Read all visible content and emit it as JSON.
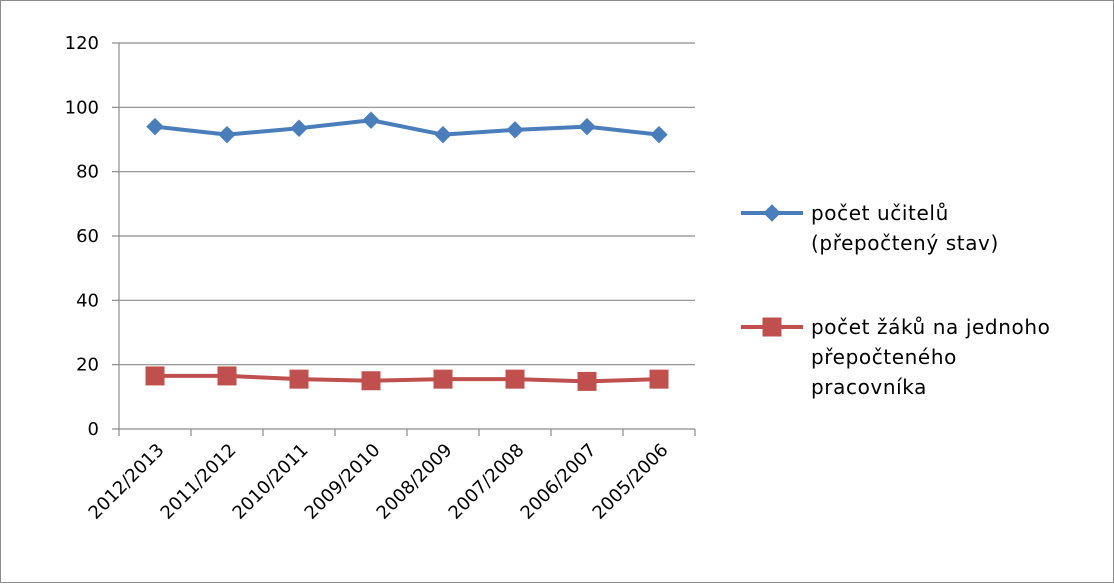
{
  "chart_data": {
    "type": "line",
    "categories": [
      "2012/2013",
      "2011/2012",
      "2010/2011",
      "2009/2010",
      "2008/2009",
      "2007/2008",
      "2006/2007",
      "2005/2006"
    ],
    "series": [
      {
        "name": "počet učitelů (přepočtený stav)",
        "legend_lines": [
          "počet učitelů",
          "(přepočtený stav)"
        ],
        "color": "#4a7ebb",
        "marker": "diamond",
        "values": [
          94,
          91.5,
          93.5,
          96,
          91.5,
          93,
          94,
          91.5
        ]
      },
      {
        "name": "počet žáků na jednoho přepočteného pracovníka",
        "legend_lines": [
          "počet žáků na jednoho",
          "přepočteného",
          "pracovníka"
        ],
        "color": "#c0504d",
        "marker": "square",
        "values": [
          16.5,
          16.5,
          15.5,
          15,
          15.5,
          15.5,
          14.8,
          15.5
        ]
      }
    ],
    "ylim": [
      0,
      120
    ],
    "yticks": [
      0,
      20,
      40,
      60,
      80,
      100,
      120
    ],
    "grid": true,
    "legend_position": "right",
    "title": "",
    "xlabel": "",
    "ylabel": ""
  }
}
